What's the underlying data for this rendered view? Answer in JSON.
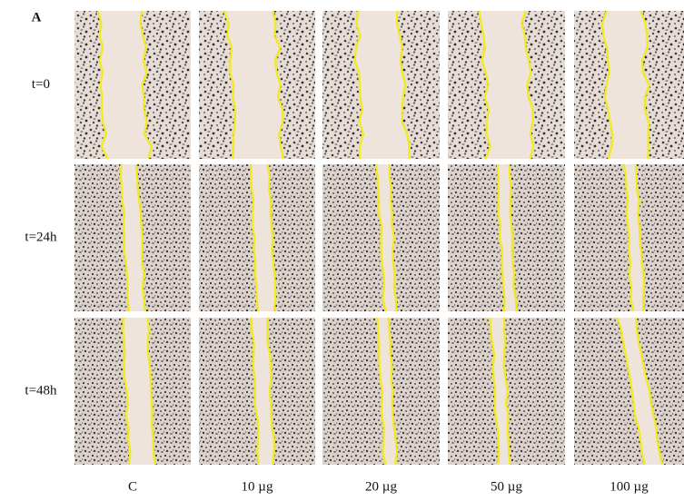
{
  "panel_label": "A",
  "rows": [
    "t=0",
    "t=24h",
    "t=48h"
  ],
  "columns": [
    "C",
    "10 µg",
    "20 µg",
    "50 µg",
    "100 µg"
  ]
}
